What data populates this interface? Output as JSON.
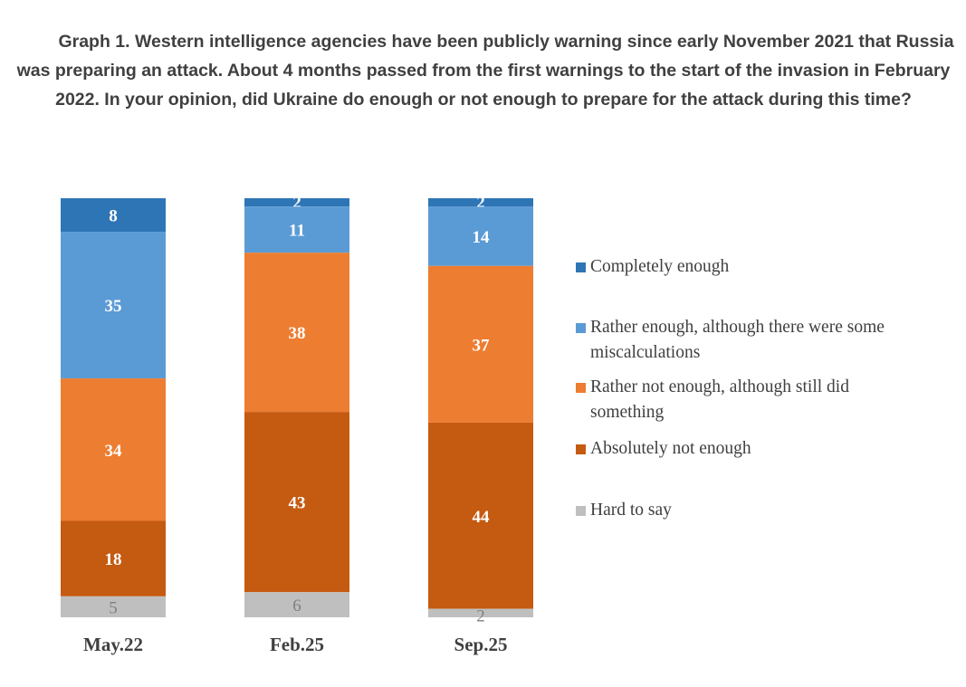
{
  "title": "Graph 1. Western intelligence agencies have been publicly warning since early November 2021 that Russia was preparing an attack. About 4 months passed from the first warnings to the start of the invasion in February 2022. In your opinion, did Ukraine do enough or not enough to prepare for the attack during this time?",
  "chart_data": {
    "type": "bar",
    "stacked": true,
    "orientation": "vertical",
    "legend_position": "right",
    "grid": false,
    "categories": [
      "May.22",
      "Feb.25",
      "Sep.25"
    ],
    "series": [
      {
        "name": "Completely enough",
        "color": "#2E75B6",
        "values": [
          8,
          2,
          2
        ]
      },
      {
        "name": "Rather enough, although there were some miscalculations",
        "color": "#5B9BD5",
        "values": [
          35,
          11,
          14
        ]
      },
      {
        "name": "Rather not enough, although still did something",
        "color": "#ED7D31",
        "values": [
          34,
          38,
          37
        ]
      },
      {
        "name": "Absolutely not enough",
        "color": "#C55A11",
        "values": [
          18,
          43,
          44
        ]
      },
      {
        "name": "Hard to say",
        "color": "#BFBFBF",
        "values": [
          5,
          6,
          2
        ]
      }
    ]
  }
}
